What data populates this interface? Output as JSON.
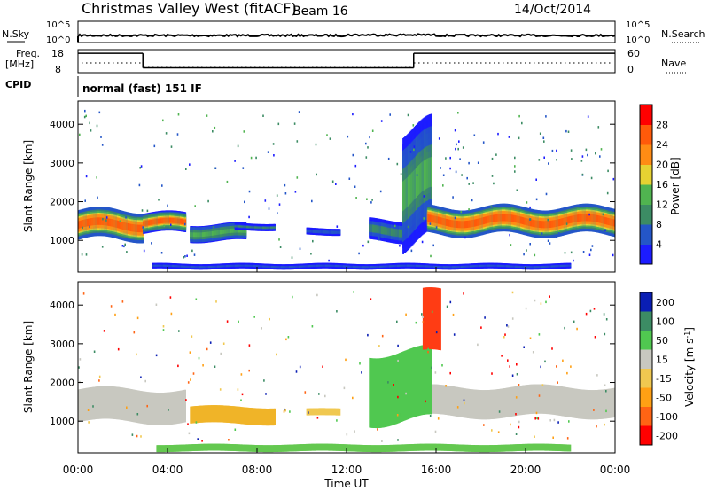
{
  "header": {
    "title": "Christmas Valley West (fitACF)",
    "beam": "Beam 16",
    "date": "14/Oct/2014"
  },
  "noise_panel": {
    "left_label": "N.Sky",
    "left_ticks": [
      "10^5",
      "10^0"
    ],
    "right_ticks": [
      "10^5",
      "10^0"
    ],
    "right_label": "N.Search"
  },
  "freq_panel": {
    "left_label_1": "Freq.",
    "left_label_2": "[MHz]",
    "left_ticks": [
      "18",
      "8"
    ],
    "right_ticks": [
      "60",
      "0"
    ],
    "right_label": "Nave",
    "freq_segments": [
      {
        "start_h": 0.0,
        "end_h": 2.9,
        "value": 16.4
      },
      {
        "start_h": 2.9,
        "end_h": 15.0,
        "value": 10.1
      },
      {
        "start_h": 15.0,
        "end_h": 24.0,
        "value": 16.4
      }
    ]
  },
  "cpid": {
    "label": "CPID",
    "value": "normal (fast) 151 IF"
  },
  "x_axis": {
    "label": "Time UT",
    "ticks": [
      "00:00",
      "04:00",
      "08:00",
      "12:00",
      "16:00",
      "20:00",
      "00:00"
    ]
  },
  "chart_data": [
    {
      "type": "heatmap",
      "xlabel": "Time UT",
      "ylabel": "Slant Range [km]",
      "ylim": [
        180,
        4600
      ],
      "yticks": [
        "1000",
        "2000",
        "3000",
        "4000"
      ],
      "colorbar_label": "Power [dB]",
      "colorbar_ticks": [
        "4",
        "8",
        "12",
        "16",
        "20",
        "24",
        "28"
      ],
      "colorbar_colors": [
        "#1c1cff",
        "#2456c8",
        "#3c8c64",
        "#50b450",
        "#e6d232",
        "#ff8c14",
        "#ff5a0a",
        "#ff0000"
      ],
      "clim": [
        0,
        32
      ],
      "regions": [
        {
          "t0": 0.0,
          "t1": 2.9,
          "r_center": 1400,
          "r_half": 380,
          "level": 27
        },
        {
          "t0": 2.9,
          "t1": 4.8,
          "r_center": 1450,
          "r_half": 260,
          "level": 24
        },
        {
          "t0": 5.0,
          "t1": 7.5,
          "r_center": 1200,
          "r_half": 220,
          "level": 13
        },
        {
          "t0": 7.0,
          "t1": 8.8,
          "r_center": 1350,
          "r_half": 90,
          "level": 8
        },
        {
          "t0": 10.2,
          "t1": 11.7,
          "r_center": 1230,
          "r_half": 90,
          "level": 7
        },
        {
          "t0": 13.0,
          "t1": 14.5,
          "r_center": 1250,
          "r_half": 280,
          "level": 10
        },
        {
          "t0": 14.5,
          "t1": 15.8,
          "r_center": 2400,
          "r_half": 1500,
          "level": 12
        },
        {
          "t0": 15.6,
          "t1": 24.0,
          "r_center": 1500,
          "r_half": 360,
          "level": 27
        },
        {
          "t0": 3.3,
          "t1": 22.0,
          "r_center": 330,
          "r_half": 70,
          "level": 6
        }
      ]
    },
    {
      "type": "heatmap",
      "xlabel": "Time UT",
      "ylabel": "Slant Range [km]",
      "ylim": [
        180,
        4600
      ],
      "yticks": [
        "1000",
        "2000",
        "3000",
        "4000"
      ],
      "colorbar_label": "Velocity [m s^-1]",
      "colorbar_ticks": [
        "200",
        "100",
        "50",
        "15",
        "-15",
        "-50",
        "-100",
        "-200"
      ],
      "colorbar_colors": [
        "#0a1eb4",
        "#3c8c64",
        "#50c850",
        "#c8c8c0",
        "#f0c850",
        "#ffa014",
        "#ff6414",
        "#ff0000"
      ],
      "regions": [
        {
          "t0": 0.0,
          "t1": 4.8,
          "r_center": 1400,
          "r_half": 420,
          "color": "#c8c8c0"
        },
        {
          "t0": 15.6,
          "t1": 24.0,
          "r_center": 1500,
          "r_half": 380,
          "color": "#c8c8c0"
        },
        {
          "t0": 5.0,
          "t1": 8.8,
          "r_center": 1150,
          "r_half": 220,
          "color": "#f0b428"
        },
        {
          "t0": 3.5,
          "t1": 22.0,
          "r_center": 310,
          "r_half": 90,
          "color": "#64c850"
        },
        {
          "t0": 13.0,
          "t1": 15.8,
          "r_center": 1900,
          "r_half": 900,
          "color": "#50c850"
        },
        {
          "t0": 15.4,
          "t1": 16.2,
          "r_center": 3500,
          "r_half": 800,
          "color": "#ff3c14"
        },
        {
          "t0": 10.2,
          "t1": 11.7,
          "r_center": 1230,
          "r_half": 90,
          "color": "#f0c850"
        }
      ]
    }
  ]
}
